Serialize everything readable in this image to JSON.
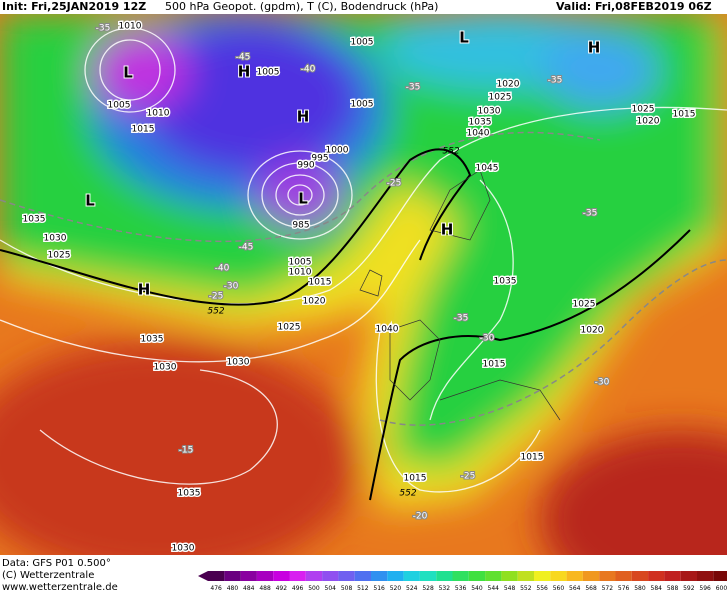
{
  "header": {
    "init": "Init: Fri,25JAN2019 12Z",
    "title": "500 hPa Geopot. (gpdm), T (C), Bodendruck (hPa)",
    "valid": "Valid: Fri,08FEB2019 06Z"
  },
  "footer": {
    "data": "Data: GFS P01 0.500°",
    "copyright": "(C) Wetterzentrale",
    "url": "www.wetterzentrale.de"
  },
  "scale": {
    "labels": [
      "476",
      "480",
      "484",
      "488",
      "492",
      "496",
      "500",
      "504",
      "508",
      "512",
      "516",
      "520",
      "524",
      "528",
      "532",
      "536",
      "540",
      "544",
      "548",
      "552",
      "556",
      "560",
      "564",
      "568",
      "572",
      "576",
      "580",
      "584",
      "588",
      "592",
      "596",
      "600"
    ]
  },
  "map": {
    "pressure_labels": [
      "1010",
      "1005",
      "1010",
      "1015",
      "1005",
      "1005",
      "1005",
      "1000",
      "995",
      "990",
      "985",
      "1005",
      "1010",
      "1015",
      "1020",
      "1025",
      "1030",
      "1035",
      "1030",
      "1035",
      "1030",
      "1025",
      "1035",
      "1030",
      "1040",
      "1045",
      "1040",
      "1035",
      "1030",
      "1025",
      "1020",
      "1025",
      "1020",
      "1015",
      "1035",
      "1025",
      "1020",
      "1015",
      "1015",
      "1015"
    ],
    "temperature_labels": [
      "-35",
      "-45",
      "-40",
      "-35",
      "-35",
      "-25",
      "-35",
      "-45",
      "-40",
      "-30",
      "-25",
      "-35",
      "-30",
      "-30",
      "-15",
      "-25",
      "-20"
    ],
    "centers": [
      "L",
      "H",
      "H",
      "L",
      "L",
      "H",
      "L",
      "H",
      "H"
    ],
    "height_labels": [
      "552",
      "552",
      "552"
    ]
  }
}
